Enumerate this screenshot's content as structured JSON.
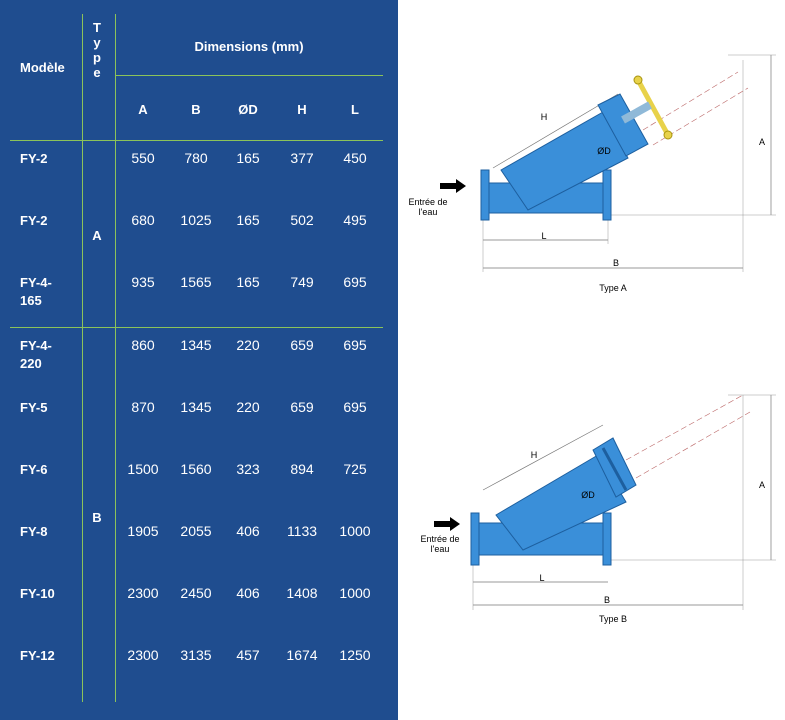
{
  "table": {
    "headers": {
      "model": "Modèle",
      "type_vertical": "T\ny\np\ne",
      "dimensions": "Dimensions (mm)",
      "columns": [
        "A",
        "B",
        "ØD",
        "H",
        "L"
      ]
    },
    "group_a_type": "A",
    "group_b_type": "B",
    "rows": [
      {
        "model": "FY-2",
        "values": [
          "550",
          "780",
          "165",
          "377",
          "450"
        ]
      },
      {
        "model": "FY-2",
        "values": [
          "680",
          "1025",
          "165",
          "502",
          "495"
        ]
      },
      {
        "model": "FY-4-\n165",
        "values": [
          "935",
          "1565",
          "165",
          "749",
          "695"
        ]
      },
      {
        "model": "FY-4-\n220",
        "values": [
          "860",
          "1345",
          "220",
          "659",
          "695"
        ]
      },
      {
        "model": "FY-5",
        "values": [
          "870",
          "1345",
          "220",
          "659",
          "695"
        ]
      },
      {
        "model": "FY-6",
        "values": [
          "1500",
          "1560",
          "323",
          "894",
          "725"
        ]
      },
      {
        "model": "FY-8",
        "values": [
          "1905",
          "2055",
          "406",
          "1133",
          "1000"
        ]
      },
      {
        "model": "FY-10",
        "values": [
          "2300",
          "2450",
          "406",
          "1408",
          "1000"
        ]
      },
      {
        "model": "FY-12",
        "values": [
          "2300",
          "3135",
          "457",
          "1674",
          "1250"
        ]
      }
    ]
  },
  "diagram_a": {
    "inlet_label": "Entrée de\nl'eau",
    "caption": "Type A",
    "dim_h": "H",
    "dim_a": "A",
    "dim_d": "ØD",
    "dim_l": "L",
    "dim_b": "B"
  },
  "diagram_b": {
    "inlet_label": "Entrée de\nl'eau",
    "caption": "Type B",
    "dim_h": "H",
    "dim_a": "A",
    "dim_d": "ØD",
    "dim_l": "L",
    "dim_b": "B"
  },
  "colors": {
    "panel": "#1f4d8f",
    "grid_lines": "#8bc35a",
    "pipe": "#3a8fd9",
    "handle": "#e8d24a"
  }
}
